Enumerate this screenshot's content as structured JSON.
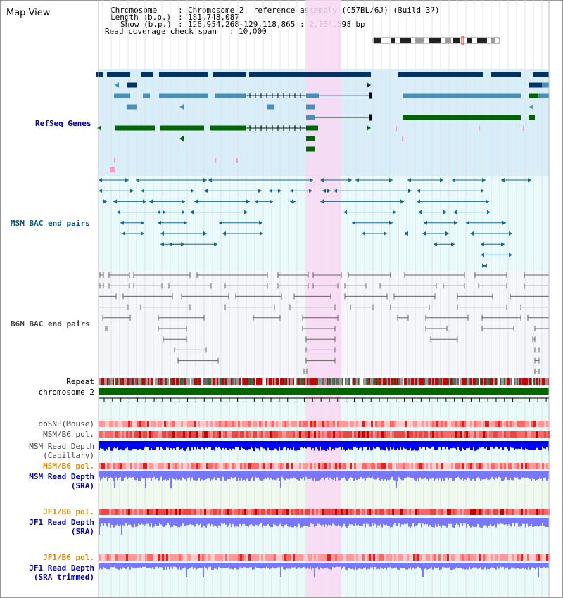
{
  "window": {
    "title": "Map View"
  },
  "info": {
    "chromosome_key": "Chromosome",
    "chromosome_value": "Chromosome 2, reference assembly (C57BL/6J) (Build 37)",
    "length_key": "Length (b.p.)",
    "length_value": "181,748,087",
    "show_key": "Show (b.p.)",
    "show_value": "126,954,268-129,118,865 : 2,164,598 bp",
    "coverage_key": "Read coverage check span",
    "coverage_value": "10,000"
  },
  "tracks": {
    "refseq": "RefSeq Genes",
    "msm_bac": "MSM BAC end pairs",
    "b6n_bac": "B6N BAC end pairs",
    "repeat": "Repeat",
    "chromosome": "chromosome 2",
    "dbsnp": "dbSNP(Mouse)",
    "msm_b6_pol_1": "MSM/B6 pol.",
    "msm_depth_cap_1": "MSM Read Depth",
    "msm_depth_cap_2": "(Capillary)",
    "msm_b6_pol_2": "MSM/B6 pol.",
    "msm_depth_sra_1": "MSM Read Depth",
    "msm_depth_sra_2": "(SRA)",
    "jf1_b6_pol_1": "JF1/B6 pol.",
    "jf1_depth_sra_1": "JF1 Read Depth",
    "jf1_depth_sra_2": "(SRA)",
    "jf1_b6_pol_2": "JF1/B6 pol.",
    "jf1_depth_trim_1": "JF1 Read Depth",
    "jf1_depth_trim_2": "(SRA trimmed)"
  },
  "axis": {
    "ticks": [
      "127200000",
      "127600000",
      "128000000",
      "128400000",
      "128800000"
    ]
  },
  "colors": {
    "refseq_dark": "#003366",
    "refseq_mid": "#4a8fb5",
    "refseq_green": "#006600",
    "msm_bac": "#1a6a8a",
    "b6n_bac": "#666666",
    "highlight": "#f9d8f3",
    "chromosome_bar": "#006600",
    "depth_capillary": "#0000ff",
    "depth_sra": "#7777ff"
  }
}
